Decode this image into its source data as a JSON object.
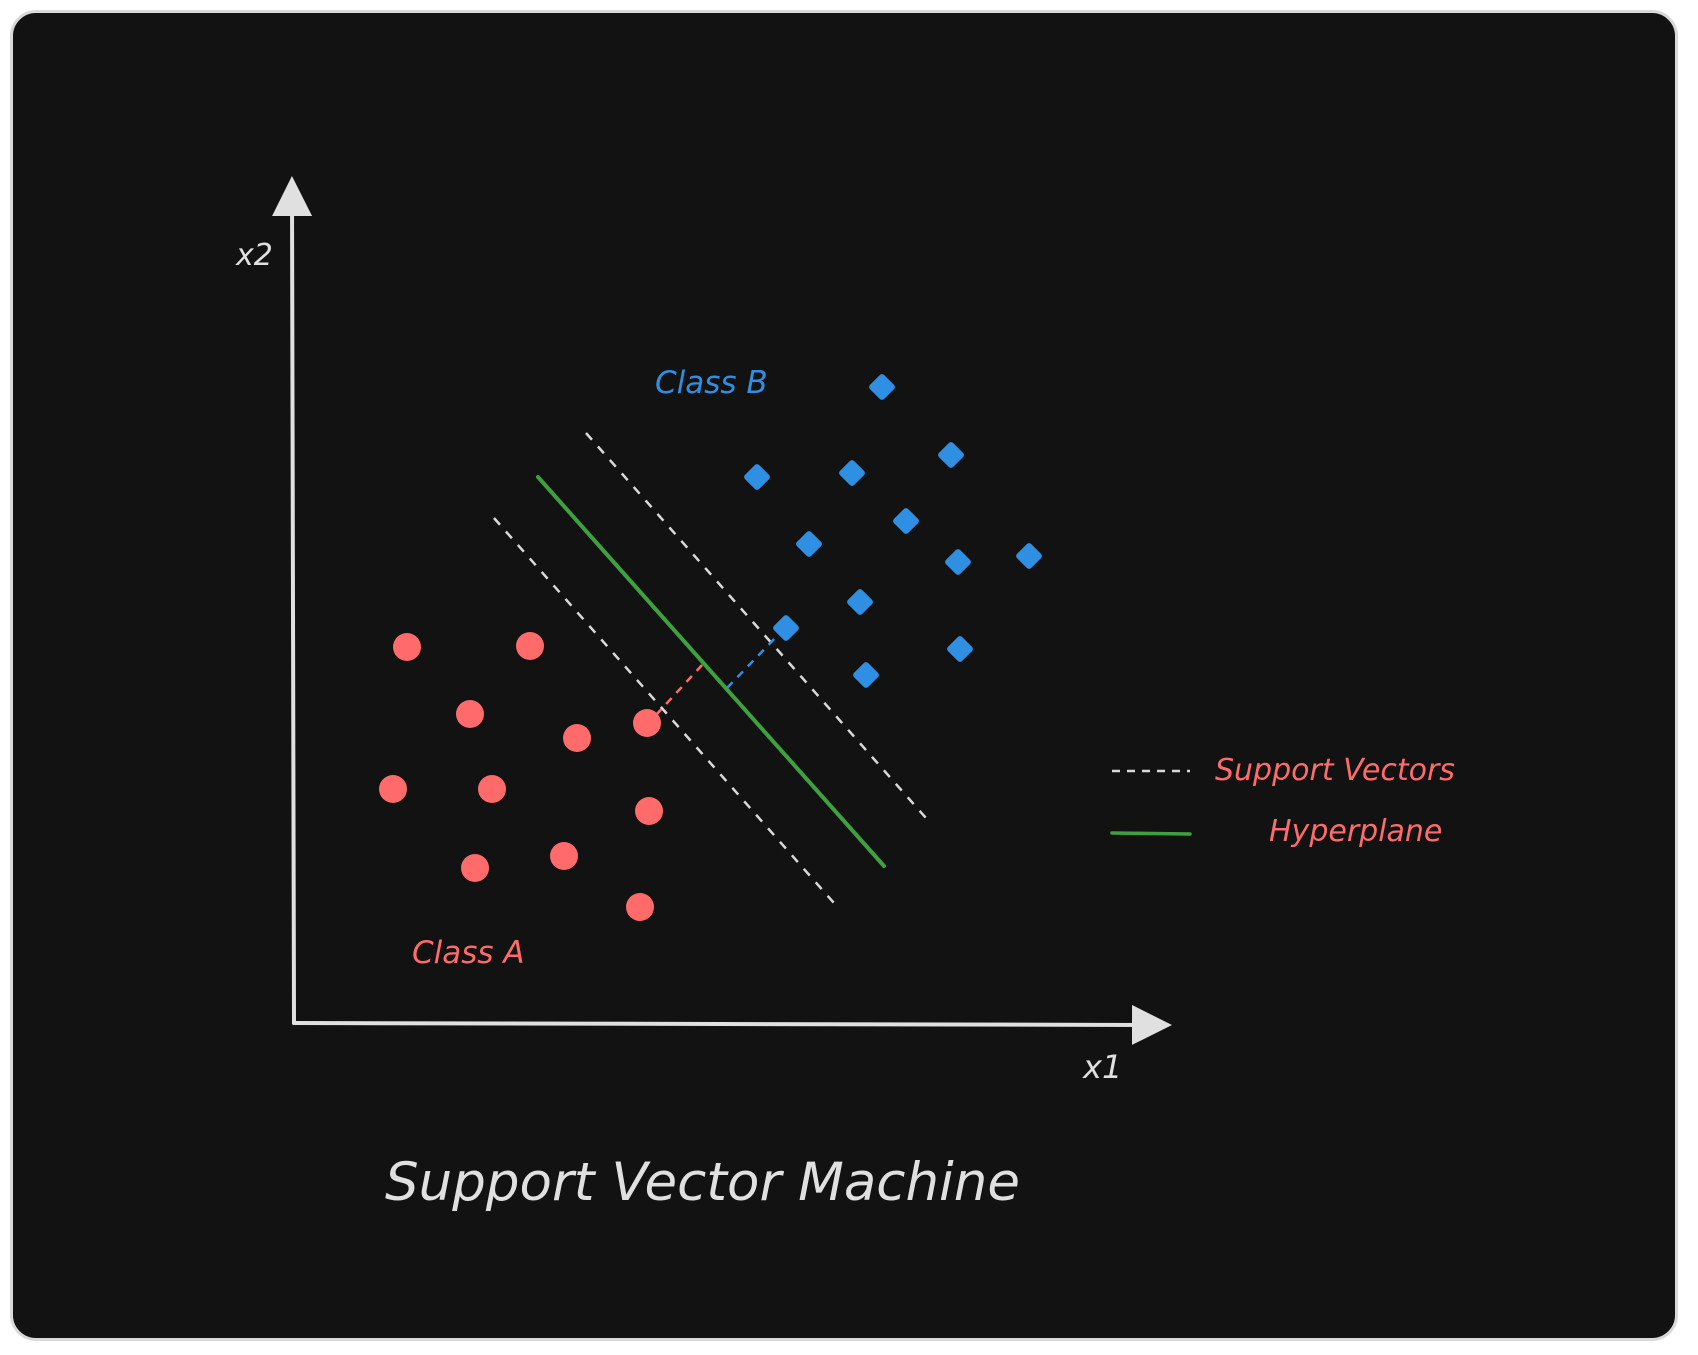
{
  "diagram": {
    "title": "Support Vector Machine",
    "axis": {
      "x_label": "x1",
      "y_label": "x2"
    },
    "classes": [
      {
        "id": "a",
        "label": "Class A",
        "color": "#ff6b6b",
        "marker": "circle"
      },
      {
        "id": "b",
        "label": "Class B",
        "color": "#2f8fe3",
        "marker": "diamond"
      }
    ],
    "legend": [
      {
        "label": "Support Vectors",
        "style": "dashed",
        "color": "#d9d9d9",
        "label_color": "#ff6b6b"
      },
      {
        "label": "Hyperplane",
        "style": "solid",
        "color": "#3ea03e",
        "label_color": "#ff6b6b"
      }
    ],
    "colors": {
      "background": "#121212",
      "axis": "#e0e0e0",
      "text": "#e0e0e0",
      "hyperplane": "#3ea03e",
      "margin": "#d9d9d9"
    }
  }
}
